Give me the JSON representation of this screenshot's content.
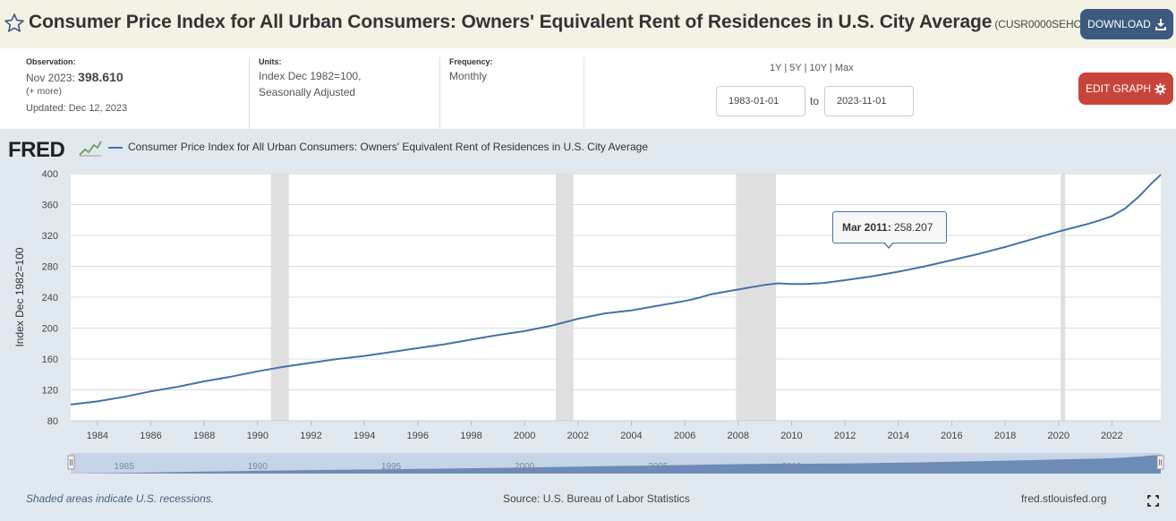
{
  "header": {
    "title": "Consumer Price Index for All Urban Consumers: Owners' Equivalent Rent of Residences in U.S. City Average",
    "series_id": "(CUSR0000SEHC)",
    "download_label": "DOWNLOAD"
  },
  "info": {
    "observation_label": "Observation:",
    "observation_date": "Nov 2023:",
    "observation_value": "398.610",
    "more_label": "(+ more)",
    "updated": "Updated: Dec 12, 2023",
    "units_label": "Units:",
    "units_line1": "Index Dec 1982=100,",
    "units_line2": "Seasonally Adjusted",
    "frequency_label": "Frequency:",
    "frequency_value": "Monthly"
  },
  "range_controls": {
    "options": [
      "1Y",
      "5Y",
      "10Y",
      "Max"
    ],
    "start_date": "1983-01-01",
    "end_date": "2023-11-01",
    "to_label": "to",
    "edit_label": "EDIT GRAPH"
  },
  "legend": {
    "logo": "FRED",
    "series_name": "Consumer Price Index for All Urban Consumers: Owners' Equivalent Rent of Residences in U.S. City Average"
  },
  "tooltip": {
    "date": "Mar 2011:",
    "value": "258.207"
  },
  "footer": {
    "shaded_note": "Shaded areas indicate U.S. recessions.",
    "source": "Source: U.S. Bureau of Labor Statistics",
    "site": "fred.stlouisfed.org"
  },
  "colors": {
    "series": "#4572a7",
    "recession": "#e0e0e0",
    "background": "#e1e9f0"
  },
  "chart_data": {
    "type": "line",
    "title": "Consumer Price Index for All Urban Consumers: Owners' Equivalent Rent of Residences in U.S. City Average",
    "xlabel": "",
    "ylabel": "Index Dec 1982=100",
    "ylim": [
      80,
      400
    ],
    "xlim": [
      1983.0,
      2023.83
    ],
    "yticks": [
      80,
      120,
      160,
      200,
      240,
      280,
      320,
      360,
      400
    ],
    "xticks": [
      1984,
      1986,
      1988,
      1990,
      1992,
      1994,
      1996,
      1998,
      2000,
      2002,
      2004,
      2006,
      2008,
      2010,
      2012,
      2014,
      2016,
      2018,
      2020,
      2022
    ],
    "navigator_ticks": [
      1985,
      1990,
      1995,
      2000,
      2005,
      2010,
      2015,
      2020
    ],
    "recessions": [
      [
        1990.5,
        1991.17
      ],
      [
        2001.17,
        2001.83
      ],
      [
        2007.92,
        2009.42
      ],
      [
        2020.08,
        2020.25
      ]
    ],
    "series": [
      {
        "name": "CUSR0000SEHC",
        "x": [
          1983.0,
          1984.0,
          1985.0,
          1986.0,
          1987.0,
          1988.0,
          1989.0,
          1990.0,
          1990.5,
          1991.0,
          1992.0,
          1993.0,
          1994.0,
          1995.0,
          1996.0,
          1997.0,
          1998.0,
          1999.0,
          2000.0,
          2001.0,
          2002.0,
          2003.0,
          2004.0,
          2005.0,
          2006.0,
          2006.5,
          2007.0,
          2008.0,
          2009.0,
          2009.5,
          2010.0,
          2010.5,
          2011.0,
          2011.17,
          2012.0,
          2013.0,
          2014.0,
          2015.0,
          2016.0,
          2017.0,
          2018.0,
          2019.0,
          2020.0,
          2021.0,
          2021.5,
          2022.0,
          2022.5,
          2023.0,
          2023.5,
          2023.83
        ],
        "values": [
          101,
          105,
          111,
          118,
          124,
          131,
          137,
          144,
          147,
          150,
          155,
          160,
          164,
          169,
          174,
          179,
          185,
          191,
          196,
          203,
          212,
          219,
          223,
          229,
          235,
          239,
          244,
          250,
          256,
          258,
          257,
          257,
          258,
          258.207,
          262,
          267,
          273,
          280,
          288,
          296,
          305,
          315,
          325,
          334,
          339,
          345,
          355,
          370,
          388,
          398.61
        ]
      }
    ]
  }
}
